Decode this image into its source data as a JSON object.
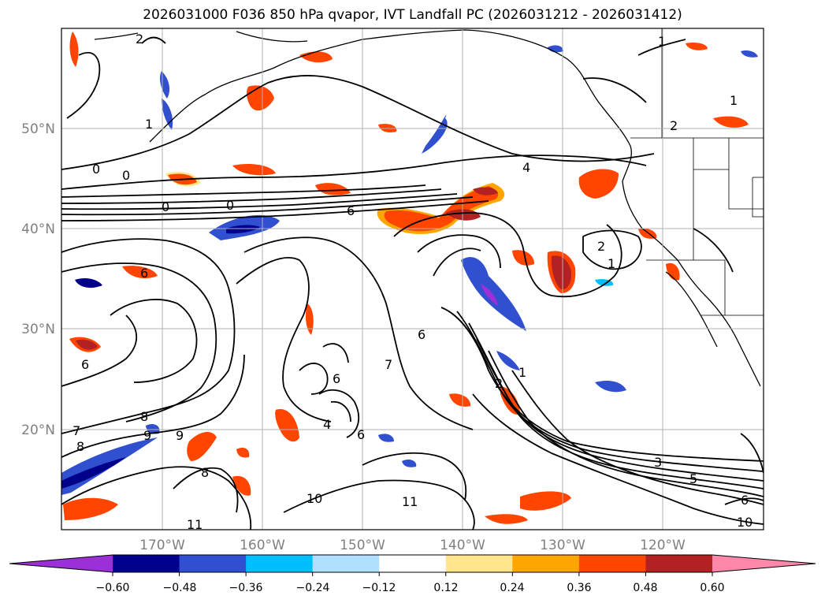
{
  "map": {
    "title": "2026031000 F036 850 hPa qvapor, IVT Landfall PC (2026031212 - 2026031412)",
    "lon_ticks": [
      "170°W",
      "160°W",
      "150°W",
      "140°W",
      "130°W",
      "120°W"
    ],
    "lat_ticks": [
      "50°N",
      "40°N",
      "30°N",
      "20°N"
    ],
    "contour_labels": [
      "2",
      "1",
      "0",
      "0",
      "4",
      "0",
      "0",
      "6",
      "2",
      "1",
      "6",
      "6",
      "6",
      "7",
      "6",
      "8",
      "9",
      "9",
      "7",
      "8",
      "8",
      "4",
      "6",
      "1",
      "2",
      "3",
      "5",
      "10",
      "11",
      "11",
      "10",
      "6",
      "1",
      "2",
      "1"
    ],
    "grid": true,
    "colors": {
      "coastline": "#000000",
      "contour": "#000000",
      "grid": "#b0b0b0",
      "tick_text": "#808080"
    }
  },
  "colorbar": {
    "ticks": [
      "−0.60",
      "−0.48",
      "−0.36",
      "−0.24",
      "−0.12",
      "0.12",
      "0.24",
      "0.36",
      "0.48",
      "0.60"
    ],
    "levels": [
      -0.6,
      -0.48,
      -0.36,
      -0.24,
      -0.12,
      0.12,
      0.24,
      0.36,
      0.48,
      0.6
    ],
    "colors": [
      "#9b30d9",
      "#00008b",
      "#3050d0",
      "#00bfff",
      "#b0e0ff",
      "#ffffff",
      "#ffe68c",
      "#ffa500",
      "#ff4500",
      "#b22222",
      "#ff88aa"
    ],
    "extend": "both"
  }
}
